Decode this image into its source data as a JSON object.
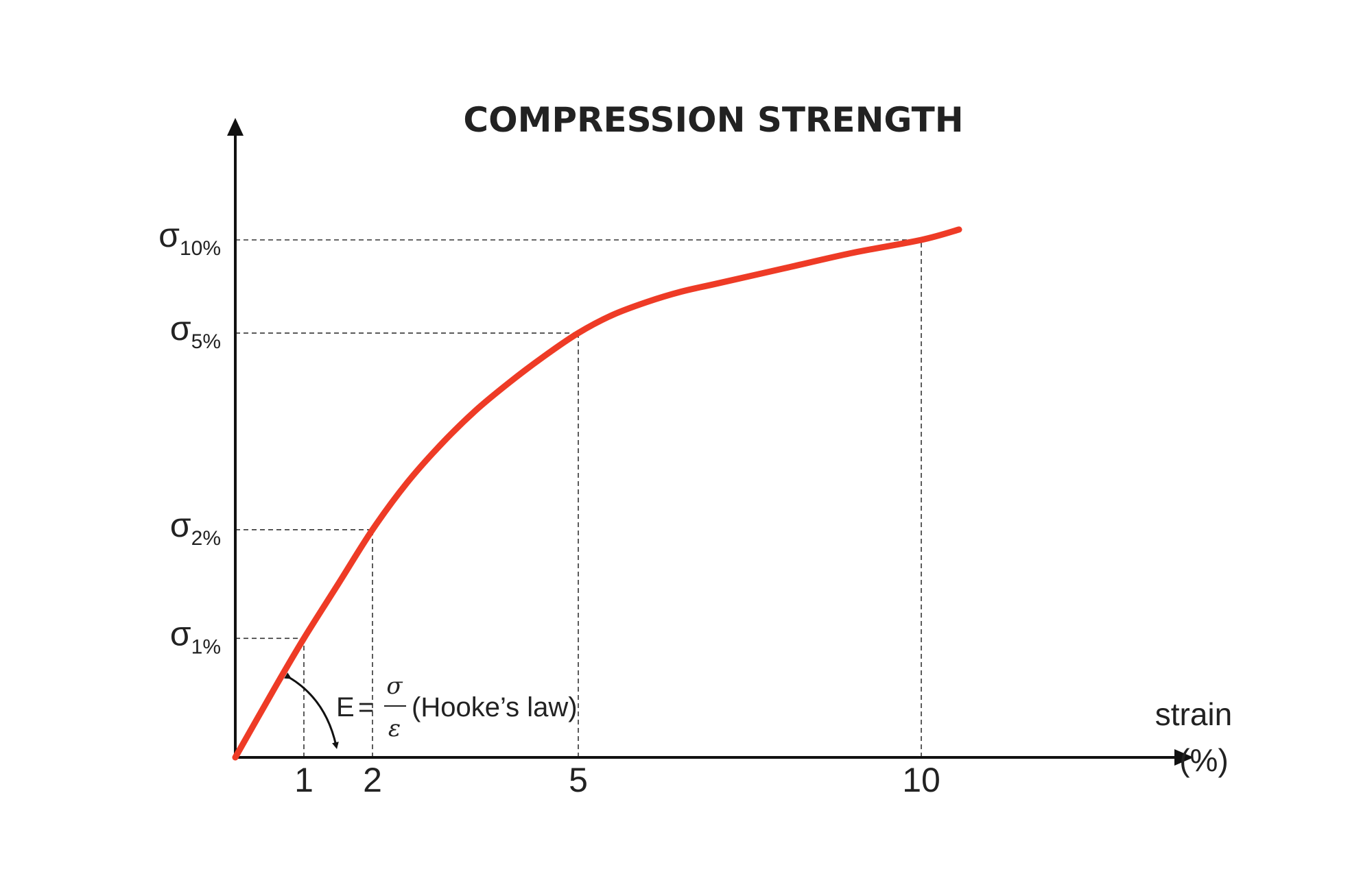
{
  "chart_data": {
    "type": "line",
    "title": "COMPRESSION STRENGTH",
    "xlabel": "strain",
    "xunit": "(%)",
    "x_ticks": [
      "1",
      "2",
      "5",
      "10"
    ],
    "xlim": [
      0,
      10.6
    ],
    "y_ticks": [
      {
        "symbol": "σ",
        "sub": "1%",
        "value": 0.23
      },
      {
        "symbol": "σ",
        "sub": "2%",
        "value": 0.44
      },
      {
        "symbol": "σ",
        "sub": "5%",
        "value": 0.82
      },
      {
        "symbol": "σ",
        "sub": "10%",
        "value": 1.0
      }
    ],
    "ylim": [
      0,
      1.25
    ],
    "grid": "dashed reference lines at the labeled strain points",
    "series": [
      {
        "color": "#ee3b26",
        "x": [
          0,
          0.6,
          1,
          1.5,
          2,
          2.5,
          3,
          3.5,
          4,
          4.5,
          5,
          5.5,
          6,
          6.5,
          7,
          8,
          9,
          10,
          10.55
        ],
        "y": [
          0,
          0.14,
          0.23,
          0.335,
          0.44,
          0.53,
          0.605,
          0.67,
          0.725,
          0.775,
          0.82,
          0.855,
          0.88,
          0.9,
          0.915,
          0.945,
          0.975,
          1.0,
          1.02
        ]
      }
    ],
    "annotation": {
      "lhs": "E",
      "eq": "=",
      "numerator": "σ",
      "denominator": "ε",
      "note": "(Hooke’s law)"
    }
  }
}
